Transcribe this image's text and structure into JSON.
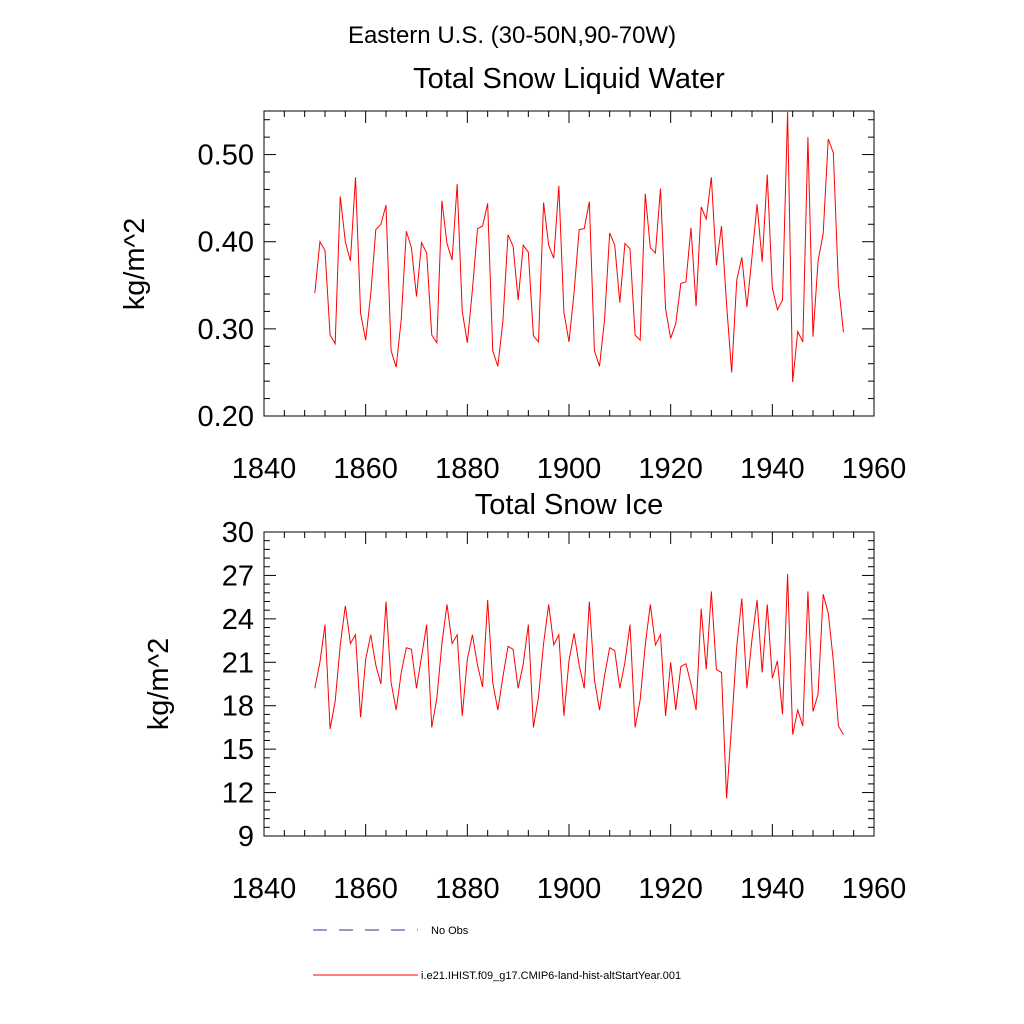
{
  "page_title": "Eastern U.S. (30-50N,90-70W)",
  "colors": {
    "series": "#ff0000",
    "obs": "#1f3b8f",
    "axis": "#000000"
  },
  "legend": {
    "obs_label": "No Obs",
    "model_label": "i.e21.IHIST.f09_g17.CMIP6-land-hist-altStartYear.001"
  },
  "chart_data": [
    {
      "type": "line",
      "title": "Total Snow Liquid Water",
      "xlabel": "",
      "ylabel": "kg/m^2",
      "xlim": [
        1840,
        1960
      ],
      "ylim": [
        0.2,
        0.55
      ],
      "xticks": [
        1840,
        1860,
        1880,
        1900,
        1920,
        1940,
        1960
      ],
      "xtick_labels": [
        "1840",
        "1860",
        "1880",
        "1900",
        "1920",
        "1940",
        "1960"
      ],
      "yticks": [
        0.2,
        0.3,
        0.4,
        0.5
      ],
      "ytick_labels": [
        "0.20",
        "0.30",
        "0.40",
        "0.50"
      ],
      "x_start": 1850,
      "series": [
        {
          "values": [
            0.341,
            0.4,
            0.39,
            0.293,
            0.283,
            0.452,
            0.4,
            0.378,
            0.474,
            0.318,
            0.287,
            0.34,
            0.414,
            0.42,
            0.442,
            0.275,
            0.256,
            0.311,
            0.412,
            0.393,
            0.337,
            0.399,
            0.387,
            0.293,
            0.284,
            0.447,
            0.398,
            0.379,
            0.466,
            0.32,
            0.284,
            0.345,
            0.415,
            0.418,
            0.444,
            0.275,
            0.257,
            0.309,
            0.408,
            0.395,
            0.333,
            0.396,
            0.388,
            0.292,
            0.285,
            0.445,
            0.396,
            0.381,
            0.464,
            0.319,
            0.285,
            0.342,
            0.414,
            0.415,
            0.446,
            0.275,
            0.257,
            0.311,
            0.41,
            0.396,
            0.33,
            0.398,
            0.392,
            0.293,
            0.287,
            0.455,
            0.393,
            0.387,
            0.461,
            0.323,
            0.289,
            0.306,
            0.352,
            0.354,
            0.416,
            0.326,
            0.44,
            0.426,
            0.474,
            0.373,
            0.418,
            0.328,
            0.25,
            0.356,
            0.382,
            0.325,
            0.383,
            0.443,
            0.377,
            0.477,
            0.347,
            0.322,
            0.333,
            0.549,
            0.239,
            0.297,
            0.285,
            0.52,
            0.291,
            0.378,
            0.409,
            0.518,
            0.502,
            0.351,
            0.296
          ]
        }
      ]
    },
    {
      "type": "line",
      "title": "Total Snow Ice",
      "xlabel": "",
      "ylabel": "kg/m^2",
      "xlim": [
        1840,
        1960
      ],
      "ylim": [
        9,
        30
      ],
      "xticks": [
        1840,
        1860,
        1880,
        1900,
        1920,
        1940,
        1960
      ],
      "xtick_labels": [
        "1840",
        "1860",
        "1880",
        "1900",
        "1920",
        "1940",
        "1960"
      ],
      "yticks": [
        9,
        12,
        15,
        18,
        21,
        24,
        27,
        30
      ],
      "ytick_labels": [
        "9",
        "12",
        "15",
        "18",
        "21",
        "24",
        "27",
        "30"
      ],
      "x_start": 1850,
      "series": [
        {
          "values": [
            19.2,
            21.0,
            23.6,
            16.4,
            18.3,
            22.2,
            24.9,
            22.3,
            22.9,
            17.2,
            21.2,
            22.9,
            20.8,
            19.5,
            25.2,
            19.6,
            17.7,
            20.3,
            22.0,
            21.9,
            19.2,
            21.4,
            23.6,
            16.5,
            18.5,
            22.3,
            25.0,
            22.3,
            22.9,
            17.3,
            21.2,
            22.9,
            20.8,
            19.3,
            25.3,
            19.6,
            17.7,
            20.0,
            22.1,
            21.9,
            19.2,
            20.9,
            23.6,
            16.5,
            18.6,
            22.3,
            25.0,
            22.2,
            22.9,
            17.3,
            21.1,
            23.0,
            20.8,
            19.2,
            25.2,
            19.8,
            17.7,
            20.1,
            22.0,
            21.8,
            19.2,
            21.0,
            23.6,
            16.5,
            18.4,
            22.2,
            25.0,
            22.2,
            22.9,
            17.3,
            21.0,
            17.7,
            20.7,
            20.9,
            19.5,
            17.7,
            24.7,
            20.5,
            25.9,
            20.5,
            20.3,
            11.6,
            16.7,
            22.1,
            25.4,
            19.2,
            22.6,
            25.3,
            20.3,
            25.0,
            19.9,
            21.1,
            17.4,
            27.1,
            16.0,
            17.7,
            16.6,
            25.9,
            17.6,
            18.8,
            25.7,
            24.4,
            21.1,
            16.6,
            16.0
          ]
        }
      ]
    }
  ]
}
